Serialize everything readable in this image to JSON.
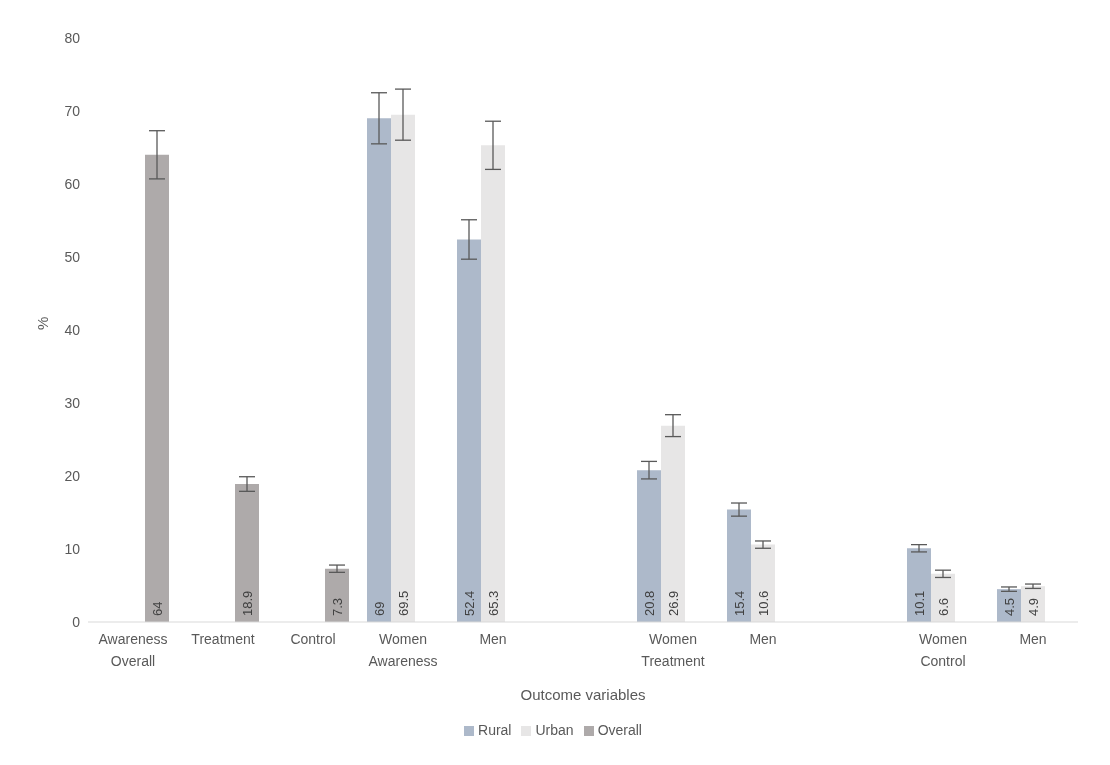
{
  "chart_data": {
    "type": "bar",
    "categories": [
      "Awareness",
      "Treatment",
      "Control",
      "Women",
      "Men",
      null,
      "Women",
      "Men",
      null,
      "Women",
      "Men"
    ],
    "series": [
      {
        "name": "Rural",
        "color": "#adb9ca",
        "values": [
          null,
          null,
          null,
          69,
          52.4,
          null,
          20.8,
          15.4,
          null,
          10.1,
          4.5
        ],
        "errors": [
          null,
          null,
          null,
          3.5,
          2.7,
          null,
          1.2,
          0.9,
          null,
          0.5,
          0.3
        ]
      },
      {
        "name": "Urban",
        "color": "#e7e6e6",
        "values": [
          null,
          null,
          null,
          69.5,
          65.3,
          null,
          26.9,
          10.6,
          null,
          6.6,
          4.9
        ],
        "errors": [
          null,
          null,
          null,
          3.5,
          3.3,
          null,
          1.5,
          0.5,
          null,
          0.5,
          0.3
        ]
      },
      {
        "name": "Overall",
        "color": "#aeaaaa",
        "values": [
          64,
          18.9,
          7.3,
          null,
          null,
          null,
          null,
          null,
          null,
          null,
          null
        ],
        "errors": [
          3.3,
          1,
          0.5,
          null,
          null,
          null,
          null,
          null,
          null,
          null,
          null
        ]
      }
    ],
    "xlabel": "Outcome variables",
    "ylabel": "%",
    "annotations": [
      "Overall",
      "Awareness",
      "Treatment",
      "Control"
    ],
    "ylim": [
      0,
      80
    ],
    "yticks": [
      0,
      10,
      20,
      30,
      40,
      50,
      60,
      70,
      80
    ],
    "grid": false,
    "legend": "bottom",
    "data_labels": true
  }
}
